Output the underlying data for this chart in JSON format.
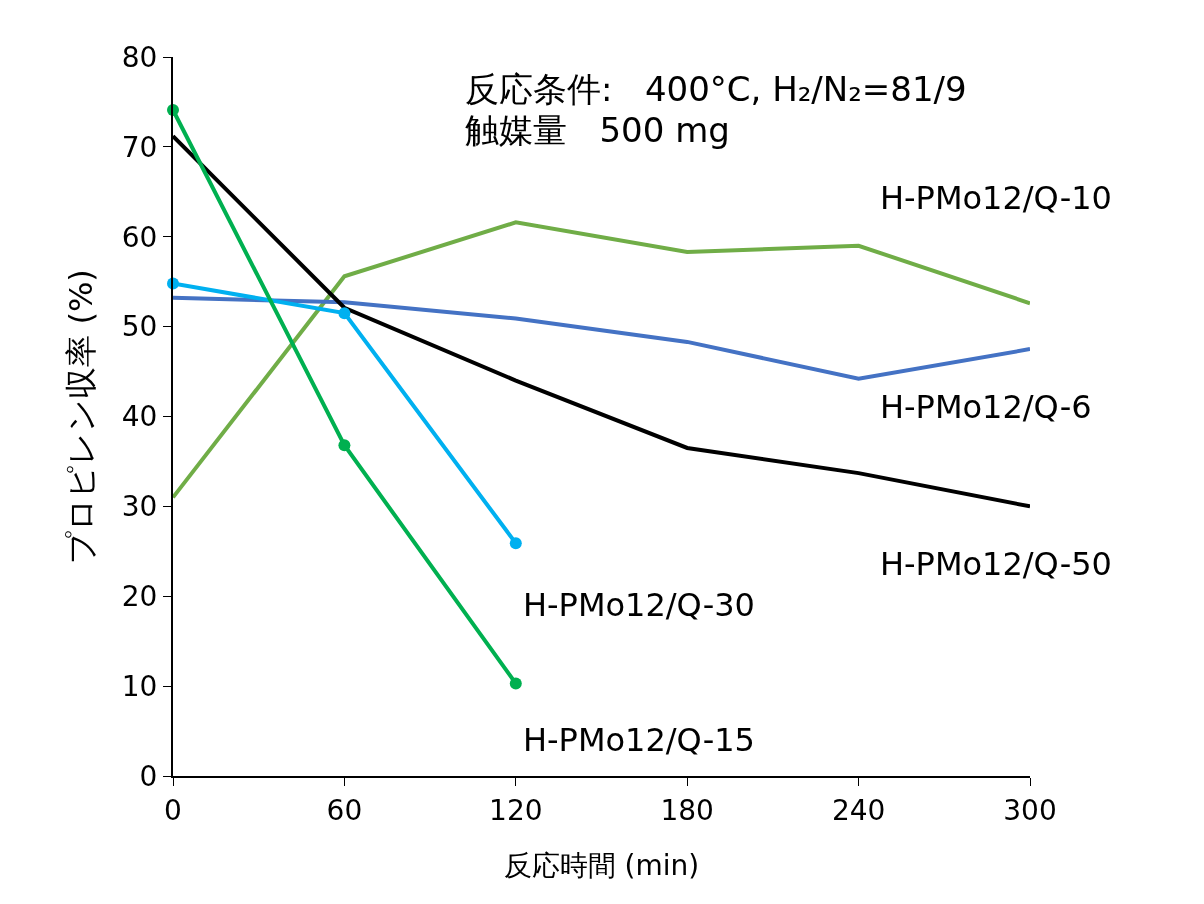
{
  "chart_data": {
    "type": "line",
    "xlabel": "反応時間 (min)",
    "ylabel": "プロピレン収率 (%)",
    "annotations": [
      "反応条件:   400°C, H₂/N₂=81/9",
      "触媒量   500 mg"
    ],
    "x": [
      0,
      60,
      120,
      180,
      240,
      300
    ],
    "xlim": [
      0,
      300
    ],
    "xticks": [
      0,
      60,
      120,
      180,
      240,
      300
    ],
    "ylim": [
      0,
      80
    ],
    "yticks": [
      0,
      10,
      20,
      30,
      40,
      50,
      60,
      70,
      80
    ],
    "legend": false,
    "series": [
      {
        "name": "H-PMo12/Q-10",
        "color": "#70ad47",
        "marker": "none",
        "values": [
          31.0,
          55.6,
          61.6,
          58.3,
          59.0,
          52.6
        ]
      },
      {
        "name": "H-PMo12/Q-6",
        "color": "#4472c4",
        "marker": "none",
        "values": [
          53.2,
          52.7,
          50.9,
          48.3,
          44.2,
          47.5
        ]
      },
      {
        "name": "H-PMo12/Q-50",
        "color": "#000000",
        "marker": "none",
        "values": [
          71.2,
          52.1,
          44.0,
          36.5,
          33.7,
          30.0
        ]
      },
      {
        "name": "H-PMo12/Q-30",
        "color": "#00b0f0",
        "marker": "circle",
        "values": [
          54.8,
          51.5,
          25.9,
          null,
          null,
          null
        ]
      },
      {
        "name": "H-PMo12/Q-15",
        "color": "#00b050",
        "marker": "circle",
        "values": [
          74.1,
          36.8,
          10.3,
          null,
          null,
          null
        ]
      }
    ]
  }
}
